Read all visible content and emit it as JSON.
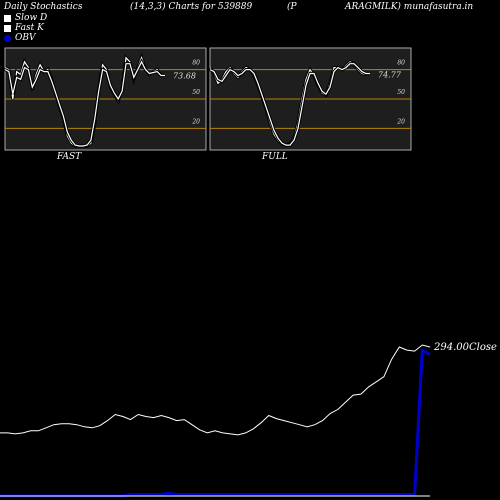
{
  "header": {
    "title": "Daily Stochastics",
    "params": "(14,3,3) Charts for 539889",
    "name_left": "(P",
    "name_right": "ARAGMILK) munafasutra.in"
  },
  "legend": [
    {
      "label": "Slow  D",
      "color": "#ffffff"
    },
    {
      "label": "Fast K",
      "color": "#ffffff"
    },
    {
      "label": "OBV",
      "color": "#0000cc"
    }
  ],
  "colors": {
    "background": "#000000",
    "panel": "#1e1e1e",
    "level_line": "#b8860b",
    "obv": "#0000cc",
    "price": "#ffffff"
  },
  "chart_data": [
    {
      "type": "line",
      "title": "FAST",
      "ylim": [
        0,
        100
      ],
      "levels": [
        80,
        50,
        20
      ],
      "level_labels": [
        "80",
        "50",
        "20"
      ],
      "value_label": "73.68",
      "series": [
        {
          "values": [
            82,
            80,
            50,
            78,
            75,
            88,
            82,
            60,
            75,
            85,
            78,
            80,
            70,
            55,
            42,
            30,
            12,
            5,
            2,
            2,
            2,
            2,
            5,
            25,
            60,
            85,
            80,
            62,
            55,
            48,
            60,
            92,
            88,
            70,
            82,
            92,
            80,
            75,
            78,
            80,
            74,
            74
          ]
        },
        {
          "values": [
            80,
            78,
            55,
            72,
            70,
            82,
            80,
            62,
            70,
            80,
            78,
            78,
            68,
            56,
            44,
            32,
            16,
            8,
            3,
            2,
            2,
            3,
            8,
            30,
            58,
            80,
            78,
            64,
            56,
            50,
            58,
            86,
            86,
            72,
            80,
            88,
            80,
            76,
            77,
            78,
            74,
            74
          ]
        }
      ]
    },
    {
      "type": "line",
      "title": "FULL",
      "ylim": [
        0,
        100
      ],
      "levels": [
        80,
        50,
        20
      ],
      "level_labels": [
        "80",
        "50",
        "20"
      ],
      "value_label": "74.77",
      "series": [
        {
          "values": [
            82,
            76,
            66,
            70,
            78,
            82,
            76,
            72,
            78,
            82,
            80,
            74,
            64,
            52,
            40,
            26,
            14,
            8,
            4,
            3,
            4,
            10,
            26,
            50,
            70,
            80,
            74,
            64,
            56,
            54,
            66,
            82,
            82,
            80,
            84,
            88,
            86,
            80,
            76,
            75,
            75
          ]
        },
        {
          "values": [
            80,
            78,
            70,
            68,
            74,
            80,
            78,
            74,
            76,
            80,
            80,
            76,
            66,
            54,
            42,
            30,
            18,
            10,
            5,
            3,
            3,
            8,
            20,
            42,
            64,
            76,
            76,
            66,
            58,
            55,
            62,
            78,
            82,
            80,
            82,
            86,
            86,
            82,
            78,
            76,
            76
          ]
        }
      ]
    },
    {
      "type": "line",
      "value_label": "294.00",
      "value_suffix": "Close",
      "series": [
        {
          "name": "Close",
          "values": [
            210,
            210,
            209,
            210,
            212,
            212,
            215,
            218,
            219,
            219,
            218,
            216,
            215,
            217,
            222,
            228,
            226,
            223,
            228,
            226,
            225,
            227,
            225,
            222,
            223,
            218,
            213,
            210,
            212,
            210,
            209,
            208,
            210,
            214,
            220,
            227,
            224,
            222,
            220,
            218,
            216,
            218,
            222,
            229,
            233,
            240,
            247,
            248,
            255,
            260,
            265,
            282,
            294,
            291,
            290,
            296,
            294
          ]
        },
        {
          "name": "OBV",
          "values": [
            0,
            0,
            0,
            0,
            0,
            0,
            0,
            0,
            0,
            0,
            0,
            0,
            0,
            0,
            0,
            0,
            0,
            1,
            1,
            1,
            1,
            1,
            2,
            1,
            1,
            1,
            1,
            1,
            1,
            1,
            1,
            1,
            1,
            1,
            1,
            1,
            1,
            1,
            1,
            1,
            1,
            1,
            1,
            1,
            1,
            1,
            1,
            1,
            1,
            1,
            1,
            1,
            1,
            1,
            1,
            100,
            97
          ]
        }
      ]
    }
  ],
  "panel_labels": {
    "fast": "FAST",
    "full": "FULL"
  }
}
